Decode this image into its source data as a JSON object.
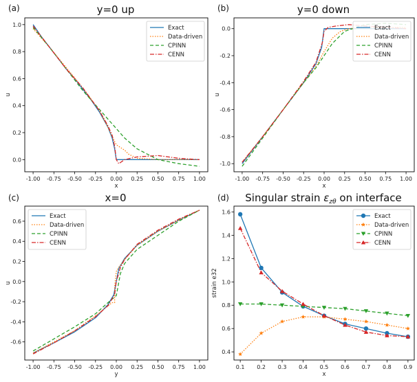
{
  "series_styles": {
    "Exact": {
      "color": "#1f77b4",
      "dash": ""
    },
    "Data-driven": {
      "color": "#ff7f0e",
      "dash": "1.5,2"
    },
    "CPINN": {
      "color": "#2ca02c",
      "dash": "5,3"
    },
    "CENN": {
      "color": "#d62728",
      "dash": "6,2,1.5,2"
    }
  },
  "chart_data": [
    {
      "type": "line",
      "panel_label": "(a)",
      "title": "y=0 up",
      "xlabel": "x",
      "ylabel": "u",
      "xlim": [
        -1.1,
        1.1
      ],
      "ylim": [
        -0.09,
        1.05
      ],
      "xticks": [
        "-1.00",
        "-0.75",
        "-0.50",
        "-0.25",
        "0.00",
        "0.25",
        "0.50",
        "0.75",
        "1.00"
      ],
      "yticks": [
        "0.0",
        "0.2",
        "0.4",
        "0.6",
        "0.8",
        "1.0"
      ],
      "legend_position": "top-right",
      "series": [
        {
          "name": "Exact",
          "x": [
            -1.0,
            -0.9,
            -0.8,
            -0.7,
            -0.6,
            -0.5,
            -0.4,
            -0.3,
            -0.2,
            -0.1,
            -0.05,
            -0.02,
            0.0,
            0.02,
            0.25,
            0.5,
            0.75,
            1.0
          ],
          "y": [
            1.0,
            0.91,
            0.83,
            0.75,
            0.67,
            0.6,
            0.52,
            0.44,
            0.35,
            0.24,
            0.16,
            0.08,
            0.0,
            0.0,
            0.0,
            0.0,
            0.0,
            0.0
          ]
        },
        {
          "name": "Data-driven",
          "x": [
            -1.0,
            -0.8,
            -0.6,
            -0.4,
            -0.2,
            -0.1,
            -0.05,
            0.0,
            0.05,
            0.1,
            0.15,
            0.25,
            0.5,
            0.75,
            1.0
          ],
          "y": [
            0.97,
            0.83,
            0.68,
            0.53,
            0.36,
            0.24,
            0.17,
            0.11,
            0.09,
            0.07,
            0.04,
            0.01,
            0.0,
            0.0,
            0.0
          ]
        },
        {
          "name": "CPINN",
          "x": [
            -1.0,
            -0.8,
            -0.6,
            -0.4,
            -0.2,
            -0.1,
            0.0,
            0.1,
            0.25,
            0.5,
            0.75,
            1.0
          ],
          "y": [
            0.98,
            0.83,
            0.67,
            0.51,
            0.37,
            0.3,
            0.23,
            0.16,
            0.08,
            0.0,
            -0.03,
            -0.05
          ]
        },
        {
          "name": "CENN",
          "x": [
            -1.0,
            -0.8,
            -0.6,
            -0.4,
            -0.2,
            -0.1,
            -0.05,
            -0.02,
            0.0,
            0.03,
            0.1,
            0.25,
            0.5,
            0.75,
            1.0
          ],
          "y": [
            0.99,
            0.83,
            0.67,
            0.53,
            0.36,
            0.25,
            0.18,
            0.1,
            0.0,
            -0.03,
            0.0,
            0.02,
            0.03,
            0.01,
            0.0
          ]
        }
      ]
    },
    {
      "type": "line",
      "panel_label": "(b)",
      "title": "y=0 down",
      "xlabel": "x",
      "ylabel": "u",
      "xlim": [
        -1.1,
        1.1
      ],
      "ylim": [
        -1.06,
        0.08
      ],
      "xticks": [
        "-1.00",
        "-0.75",
        "-0.50",
        "-0.25",
        "0.00",
        "0.25",
        "0.50",
        "0.75",
        "1.00"
      ],
      "yticks": [
        "-1.0",
        "-0.8",
        "-0.6",
        "-0.4",
        "-0.2",
        "0.0"
      ],
      "legend_position": "top-right",
      "series": [
        {
          "name": "Exact",
          "x": [
            -1.0,
            -0.75,
            -0.5,
            -0.25,
            -0.1,
            -0.03,
            0.0,
            0.02,
            0.25,
            0.5,
            0.75,
            1.0
          ],
          "y": [
            -1.0,
            -0.8,
            -0.6,
            -0.4,
            -0.26,
            -0.14,
            0.0,
            0.0,
            0.0,
            0.0,
            0.0,
            0.0
          ]
        },
        {
          "name": "Data-driven",
          "x": [
            -1.0,
            -0.75,
            -0.5,
            -0.25,
            -0.1,
            0.0,
            0.05,
            0.1,
            0.2,
            0.3,
            0.5,
            0.75,
            1.0
          ],
          "y": [
            -0.99,
            -0.8,
            -0.6,
            -0.4,
            -0.28,
            -0.17,
            -0.12,
            -0.07,
            -0.02,
            0.0,
            0.01,
            0.01,
            0.01
          ]
        },
        {
          "name": "CPINN",
          "x": [
            -1.0,
            -0.75,
            -0.5,
            -0.25,
            -0.1,
            0.0,
            0.1,
            0.25,
            0.5,
            0.75,
            1.0
          ],
          "y": [
            -1.02,
            -0.81,
            -0.6,
            -0.4,
            -0.29,
            -0.2,
            -0.11,
            -0.02,
            0.03,
            0.04,
            0.03
          ]
        },
        {
          "name": "CENN",
          "x": [
            -1.0,
            -0.75,
            -0.5,
            -0.25,
            -0.1,
            -0.02,
            0.0,
            0.05,
            0.15,
            0.3,
            0.5,
            0.75,
            1.0
          ],
          "y": [
            -0.99,
            -0.8,
            -0.6,
            -0.39,
            -0.25,
            -0.1,
            -0.02,
            0.01,
            0.02,
            0.03,
            0.02,
            0.01,
            0.0
          ]
        }
      ]
    },
    {
      "type": "line",
      "panel_label": "(c)",
      "title": "x=0",
      "xlabel": "y",
      "ylabel": "u",
      "xlim": [
        -1.1,
        1.1
      ],
      "ylim": [
        -0.78,
        0.75
      ],
      "xticks": [
        "-1.00",
        "-0.75",
        "-0.50",
        "-0.25",
        "0.00",
        "0.25",
        "0.50",
        "0.75",
        "1.00"
      ],
      "yticks": [
        "-0.6",
        "-0.4",
        "-0.2",
        "0.0",
        "0.2",
        "0.4",
        "0.6"
      ],
      "legend_position": "top-left",
      "series": [
        {
          "name": "Exact",
          "x": [
            -1.0,
            -0.75,
            -0.5,
            -0.25,
            -0.1,
            -0.03,
            0.0,
            0.03,
            0.1,
            0.25,
            0.5,
            0.75,
            1.0
          ],
          "y": [
            -0.71,
            -0.61,
            -0.5,
            -0.36,
            -0.23,
            -0.13,
            0.0,
            0.13,
            0.23,
            0.36,
            0.5,
            0.61,
            0.71
          ]
        },
        {
          "name": "Data-driven",
          "x": [
            -1.0,
            -0.75,
            -0.5,
            -0.25,
            -0.05,
            -0.02,
            -0.02,
            0.0,
            0.02,
            0.1,
            0.25,
            0.5,
            0.75,
            1.0
          ],
          "y": [
            -0.71,
            -0.6,
            -0.49,
            -0.34,
            -0.21,
            -0.21,
            -0.05,
            0.1,
            0.13,
            0.22,
            0.36,
            0.5,
            0.61,
            0.71
          ]
        },
        {
          "name": "CPINN",
          "x": [
            -1.0,
            -0.75,
            -0.5,
            -0.25,
            -0.1,
            0.0,
            0.05,
            0.1,
            0.25,
            0.5,
            0.75,
            1.0
          ],
          "y": [
            -0.69,
            -0.57,
            -0.45,
            -0.32,
            -0.21,
            -0.14,
            0.08,
            0.18,
            0.32,
            0.46,
            0.6,
            0.71
          ]
        },
        {
          "name": "CENN",
          "x": [
            -1.0,
            -0.75,
            -0.5,
            -0.25,
            -0.1,
            -0.02,
            0.0,
            0.05,
            0.1,
            0.25,
            0.5,
            0.75,
            1.0
          ],
          "y": [
            -0.72,
            -0.61,
            -0.49,
            -0.35,
            -0.24,
            -0.13,
            0.0,
            0.14,
            0.22,
            0.37,
            0.51,
            0.62,
            0.71
          ]
        }
      ]
    },
    {
      "type": "line",
      "panel_label": "(d)",
      "title": "Singular strain",
      "title_math": "ε",
      "title_math_sub": "zθ",
      "title_suffix": "on interface",
      "xlabel": "x",
      "ylabel": "strain e32",
      "xlim": [
        0.07,
        0.93
      ],
      "ylim": [
        0.33,
        1.65
      ],
      "xticks": [
        "0.1",
        "0.2",
        "0.3",
        "0.4",
        "0.5",
        "0.6",
        "0.7",
        "0.8",
        "0.9"
      ],
      "yticks": [
        "0.4",
        "0.6",
        "0.8",
        "1.0",
        "1.2",
        "1.4",
        "1.6"
      ],
      "legend_position": "top-right",
      "x": [
        0.1,
        0.2,
        0.3,
        0.4,
        0.5,
        0.6,
        0.7,
        0.8,
        0.9
      ],
      "series": [
        {
          "name": "Exact",
          "marker": "circle",
          "values": [
            1.58,
            1.12,
            0.91,
            0.79,
            0.71,
            0.64,
            0.6,
            0.56,
            0.53
          ]
        },
        {
          "name": "Data-driven",
          "marker": "star",
          "values": [
            0.38,
            0.56,
            0.66,
            0.7,
            0.7,
            0.68,
            0.66,
            0.63,
            0.6
          ]
        },
        {
          "name": "CPINN",
          "marker": "triangle-down",
          "values": [
            0.81,
            0.81,
            0.8,
            0.79,
            0.78,
            0.77,
            0.75,
            0.73,
            0.71
          ]
        },
        {
          "name": "CENN",
          "marker": "triangle-up",
          "values": [
            1.46,
            1.08,
            0.92,
            0.81,
            0.71,
            0.63,
            0.57,
            0.54,
            0.53
          ]
        }
      ]
    }
  ]
}
